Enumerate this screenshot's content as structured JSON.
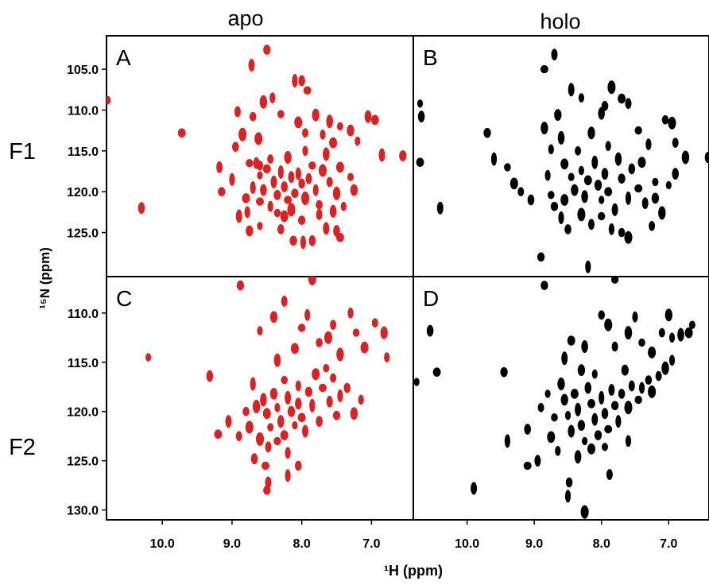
{
  "figure": {
    "column_headers": [
      "apo",
      "holo"
    ],
    "row_headers": [
      "F1",
      "F2"
    ],
    "xlabel": "¹H (ppm)",
    "ylabel": "¹⁵N (ppm)",
    "colors": {
      "apo": "#e02020",
      "holo": "#000000",
      "frame": "#000000"
    }
  },
  "chart_data": [
    {
      "type": "scatter",
      "panel": "A",
      "condition": "apo",
      "fragment": "F1",
      "xlim": [
        10.8,
        6.4
      ],
      "ylim": [
        100.9,
        130.4
      ],
      "x_ticks": [],
      "y_ticks": [
        "105.0",
        "110.0",
        "115.0",
        "120.0",
        "125.0"
      ],
      "color": "#e02020",
      "points": [
        [
          10.78,
          108.8
        ],
        [
          10.3,
          122.0
        ],
        [
          9.72,
          112.8
        ],
        [
          8.72,
          104.5
        ],
        [
          8.5,
          102.6
        ],
        [
          8.1,
          106.4
        ],
        [
          8.0,
          106.4
        ],
        [
          7.92,
          107.6
        ],
        [
          9.18,
          117.0
        ],
        [
          9.15,
          120.0
        ],
        [
          9.0,
          118.5
        ],
        [
          8.95,
          114.5
        ],
        [
          8.85,
          113.0
        ],
        [
          8.92,
          110.2
        ],
        [
          8.75,
          116.5
        ],
        [
          8.78,
          122.5
        ],
        [
          8.7,
          110.8
        ],
        [
          8.62,
          113.5
        ],
        [
          8.6,
          116.8
        ],
        [
          8.55,
          109.0
        ],
        [
          8.42,
          108.5
        ],
        [
          8.3,
          110.5
        ],
        [
          8.05,
          111.5
        ],
        [
          7.95,
          112.8
        ],
        [
          7.8,
          110.6
        ],
        [
          7.7,
          113.0
        ],
        [
          7.6,
          111.4
        ],
        [
          7.55,
          114.0
        ],
        [
          7.45,
          112.0
        ],
        [
          7.3,
          112.5
        ],
        [
          7.2,
          113.8
        ],
        [
          7.05,
          110.8
        ],
        [
          6.95,
          111.2
        ],
        [
          6.85,
          115.5
        ],
        [
          6.55,
          115.6
        ],
        [
          8.6,
          118.0
        ],
        [
          8.55,
          119.8
        ],
        [
          8.5,
          117.2
        ],
        [
          8.4,
          118.8
        ],
        [
          8.35,
          120.4
        ],
        [
          8.3,
          117.6
        ],
        [
          8.25,
          119.4
        ],
        [
          8.2,
          121.0
        ],
        [
          8.15,
          118.2
        ],
        [
          8.1,
          120.2
        ],
        [
          8.05,
          117.8
        ],
        [
          8.0,
          119.0
        ],
        [
          7.95,
          120.8
        ],
        [
          7.9,
          118.4
        ],
        [
          7.85,
          116.8
        ],
        [
          7.8,
          119.8
        ],
        [
          7.75,
          121.6
        ],
        [
          7.7,
          117.4
        ],
        [
          7.6,
          118.8
        ],
        [
          7.5,
          120.2
        ],
        [
          8.45,
          121.8
        ],
        [
          8.35,
          122.6
        ],
        [
          8.25,
          123.0
        ],
        [
          8.45,
          116.0
        ],
        [
          8.2,
          115.8
        ],
        [
          7.95,
          115.0
        ],
        [
          7.65,
          115.4
        ],
        [
          7.45,
          117.0
        ],
        [
          7.3,
          118.2
        ],
        [
          7.25,
          119.8
        ],
        [
          7.4,
          121.8
        ],
        [
          7.55,
          122.4
        ],
        [
          8.8,
          120.8
        ],
        [
          8.9,
          123.0
        ],
        [
          8.75,
          124.8
        ],
        [
          8.6,
          124.2
        ],
        [
          7.5,
          124.8
        ],
        [
          7.45,
          125.6
        ],
        [
          7.65,
          124.5
        ],
        [
          8.12,
          126.0
        ],
        [
          7.98,
          126.2
        ],
        [
          7.85,
          126.0
        ],
        [
          8.6,
          121.2
        ],
        [
          8.65,
          116.5
        ],
        [
          8.0,
          123.5
        ],
        [
          8.7,
          119.5
        ],
        [
          8.3,
          124.6
        ],
        [
          8.15,
          122.2
        ],
        [
          7.75,
          122.8
        ]
      ]
    },
    {
      "type": "scatter",
      "panel": "B",
      "condition": "holo",
      "fragment": "F1",
      "xlim": [
        10.8,
        6.4
      ],
      "ylim": [
        100.9,
        130.4
      ],
      "x_ticks": [],
      "y_ticks": [],
      "color": "#000000",
      "points": [
        [
          10.7,
          109.2
        ],
        [
          10.68,
          110.8
        ],
        [
          10.7,
          116.4
        ],
        [
          10.4,
          122.0
        ],
        [
          9.7,
          112.8
        ],
        [
          9.6,
          116.0
        ],
        [
          9.05,
          121.0
        ],
        [
          8.85,
          105.0
        ],
        [
          8.7,
          103.2
        ],
        [
          8.9,
          128.0
        ],
        [
          8.2,
          129.2
        ],
        [
          7.95,
          109.5
        ],
        [
          7.85,
          107.2
        ],
        [
          7.6,
          109.2
        ],
        [
          7.45,
          112.5
        ],
        [
          7.3,
          114.2
        ],
        [
          7.05,
          111.2
        ],
        [
          6.95,
          111.6
        ],
        [
          6.9,
          114.0
        ],
        [
          6.75,
          115.8
        ],
        [
          6.42,
          115.8
        ],
        [
          9.4,
          117.0
        ],
        [
          9.3,
          119.0
        ],
        [
          9.2,
          120.0
        ],
        [
          8.85,
          112.2
        ],
        [
          8.75,
          114.8
        ],
        [
          8.6,
          113.4
        ],
        [
          8.55,
          116.6
        ],
        [
          8.45,
          118.2
        ],
        [
          8.4,
          119.8
        ],
        [
          8.3,
          117.4
        ],
        [
          8.25,
          120.6
        ],
        [
          8.2,
          118.6
        ],
        [
          8.1,
          116.4
        ],
        [
          8.05,
          119.2
        ],
        [
          8.0,
          121.0
        ],
        [
          7.95,
          117.8
        ],
        [
          7.9,
          120.0
        ],
        [
          7.8,
          122.2
        ],
        [
          7.7,
          118.4
        ],
        [
          7.6,
          120.8
        ],
        [
          7.55,
          117.2
        ],
        [
          7.45,
          119.6
        ],
        [
          7.35,
          121.4
        ],
        [
          8.7,
          121.8
        ],
        [
          8.6,
          123.2
        ],
        [
          8.5,
          124.6
        ],
        [
          8.3,
          122.8
        ],
        [
          8.15,
          124.0
        ],
        [
          8.0,
          123.0
        ],
        [
          7.85,
          124.6
        ],
        [
          7.7,
          125.0
        ],
        [
          7.6,
          125.6
        ],
        [
          7.25,
          124.2
        ],
        [
          7.1,
          122.6
        ],
        [
          8.8,
          118.0
        ],
        [
          8.75,
          120.4
        ],
        [
          8.55,
          121.0
        ],
        [
          8.35,
          115.0
        ],
        [
          8.15,
          112.8
        ],
        [
          7.9,
          114.4
        ],
        [
          7.75,
          116.0
        ],
        [
          7.4,
          116.4
        ],
        [
          7.2,
          118.8
        ],
        [
          8.65,
          110.6
        ],
        [
          8.3,
          108.5
        ],
        [
          8.0,
          110.4
        ],
        [
          7.7,
          108.6
        ],
        [
          8.45,
          107.5
        ],
        [
          7.2,
          120.8
        ],
        [
          7.0,
          119.2
        ],
        [
          6.9,
          117.8
        ]
      ]
    },
    {
      "type": "scatter",
      "panel": "C",
      "condition": "apo",
      "fragment": "F2",
      "xlim": [
        10.8,
        6.4
      ],
      "ylim": [
        106.3,
        131.0
      ],
      "x_ticks": [
        "10.0",
        "9.0",
        "8.0",
        "7.0"
      ],
      "y_ticks": [
        "110.0",
        "115.0",
        "120.0",
        "125.0",
        "130.0"
      ],
      "color": "#e02020",
      "points": [
        [
          10.2,
          114.5
        ],
        [
          9.32,
          116.4
        ],
        [
          9.2,
          122.3
        ],
        [
          9.05,
          121.0
        ],
        [
          8.88,
          107.2
        ],
        [
          8.7,
          117.2
        ],
        [
          8.68,
          124.8
        ],
        [
          8.52,
          125.5
        ],
        [
          8.48,
          127.2
        ],
        [
          8.5,
          128.0
        ],
        [
          8.2,
          126.5
        ],
        [
          8.05,
          125.5
        ],
        [
          7.85,
          106.5
        ],
        [
          8.25,
          108.8
        ],
        [
          8.0,
          111.5
        ],
        [
          7.92,
          110.2
        ],
        [
          7.75,
          113.0
        ],
        [
          7.62,
          112.5
        ],
        [
          7.55,
          111.2
        ],
        [
          7.45,
          114.2
        ],
        [
          7.3,
          110.0
        ],
        [
          7.22,
          112.0
        ],
        [
          7.1,
          113.5
        ],
        [
          6.95,
          111.0
        ],
        [
          6.82,
          112.0
        ],
        [
          6.78,
          114.5
        ],
        [
          8.55,
          118.8
        ],
        [
          8.5,
          120.2
        ],
        [
          8.45,
          121.6
        ],
        [
          8.4,
          118.2
        ],
        [
          8.35,
          119.6
        ],
        [
          8.3,
          121.0
        ],
        [
          8.25,
          122.4
        ],
        [
          8.2,
          118.6
        ],
        [
          8.15,
          120.0
        ],
        [
          8.1,
          121.4
        ],
        [
          8.05,
          119.2
        ],
        [
          8.0,
          120.6
        ],
        [
          7.95,
          122.0
        ],
        [
          7.9,
          118.0
        ],
        [
          7.85,
          119.4
        ],
        [
          7.75,
          121.0
        ],
        [
          7.7,
          117.6
        ],
        [
          7.6,
          119.0
        ],
        [
          7.5,
          120.4
        ],
        [
          7.45,
          118.4
        ],
        [
          7.35,
          117.6
        ],
        [
          8.6,
          122.8
        ],
        [
          8.48,
          123.6
        ],
        [
          8.35,
          123.0
        ],
        [
          8.2,
          124.2
        ],
        [
          8.8,
          120.0
        ],
        [
          8.75,
          121.6
        ],
        [
          8.9,
          122.5
        ],
        [
          8.65,
          119.5
        ],
        [
          8.05,
          117.4
        ],
        [
          8.25,
          116.8
        ],
        [
          7.8,
          116.2
        ],
        [
          7.55,
          116.6
        ],
        [
          7.25,
          120.2
        ],
        [
          7.15,
          118.8
        ],
        [
          8.35,
          114.8
        ],
        [
          8.1,
          113.6
        ],
        [
          7.65,
          115.6
        ],
        [
          8.4,
          110.4
        ],
        [
          8.6,
          111.8
        ]
      ]
    },
    {
      "type": "scatter",
      "panel": "D",
      "condition": "holo",
      "fragment": "F2",
      "xlim": [
        10.8,
        6.4
      ],
      "ylim": [
        106.3,
        131.0
      ],
      "x_ticks": [
        "10.0",
        "9.0",
        "8.0",
        "7.0"
      ],
      "y_ticks": [],
      "color": "#000000",
      "points": [
        [
          10.75,
          117.0
        ],
        [
          10.55,
          111.8
        ],
        [
          10.45,
          116.0
        ],
        [
          9.9,
          127.8
        ],
        [
          9.45,
          116.0
        ],
        [
          9.4,
          123.0
        ],
        [
          9.1,
          121.8
        ],
        [
          9.1,
          125.5
        ],
        [
          8.95,
          125.0
        ],
        [
          8.85,
          107.2
        ],
        [
          8.5,
          128.6
        ],
        [
          8.48,
          127.2
        ],
        [
          8.25,
          130.2
        ],
        [
          7.88,
          126.4
        ],
        [
          7.8,
          106.6
        ],
        [
          7.6,
          123.0
        ],
        [
          8.0,
          110.2
        ],
        [
          7.9,
          111.2
        ],
        [
          7.8,
          113.4
        ],
        [
          7.6,
          112.0
        ],
        [
          7.5,
          110.4
        ],
        [
          7.4,
          113.0
        ],
        [
          7.25,
          114.0
        ],
        [
          7.1,
          112.0
        ],
        [
          7.0,
          110.2
        ],
        [
          6.95,
          112.5
        ],
        [
          6.82,
          112.2
        ],
        [
          6.7,
          112.0
        ],
        [
          6.65,
          111.2
        ],
        [
          8.55,
          118.8
        ],
        [
          8.5,
          120.4
        ],
        [
          8.45,
          122.0
        ],
        [
          8.4,
          118.2
        ],
        [
          8.35,
          119.8
        ],
        [
          8.3,
          121.4
        ],
        [
          8.25,
          123.0
        ],
        [
          8.2,
          117.6
        ],
        [
          8.15,
          119.2
        ],
        [
          8.1,
          120.8
        ],
        [
          8.05,
          122.4
        ],
        [
          8.0,
          118.6
        ],
        [
          7.95,
          120.2
        ],
        [
          7.9,
          121.8
        ],
        [
          7.85,
          117.8
        ],
        [
          7.8,
          119.4
        ],
        [
          7.75,
          121.0
        ],
        [
          7.7,
          118.2
        ],
        [
          7.6,
          119.6
        ],
        [
          7.55,
          117.4
        ],
        [
          7.45,
          118.8
        ],
        [
          7.4,
          117.6
        ],
        [
          7.3,
          116.8
        ],
        [
          7.25,
          118.0
        ],
        [
          7.15,
          116.4
        ],
        [
          7.05,
          115.6
        ],
        [
          6.95,
          114.8
        ],
        [
          8.7,
          120.6
        ],
        [
          8.75,
          122.6
        ],
        [
          8.9,
          119.6
        ],
        [
          8.6,
          117.2
        ],
        [
          8.65,
          124.0
        ],
        [
          8.35,
          124.6
        ],
        [
          8.15,
          123.8
        ],
        [
          7.95,
          123.6
        ],
        [
          8.3,
          115.8
        ],
        [
          8.1,
          116.2
        ],
        [
          8.25,
          113.4
        ],
        [
          8.45,
          112.8
        ],
        [
          8.55,
          114.6
        ],
        [
          7.65,
          115.8
        ],
        [
          8.8,
          118.2
        ]
      ]
    }
  ]
}
